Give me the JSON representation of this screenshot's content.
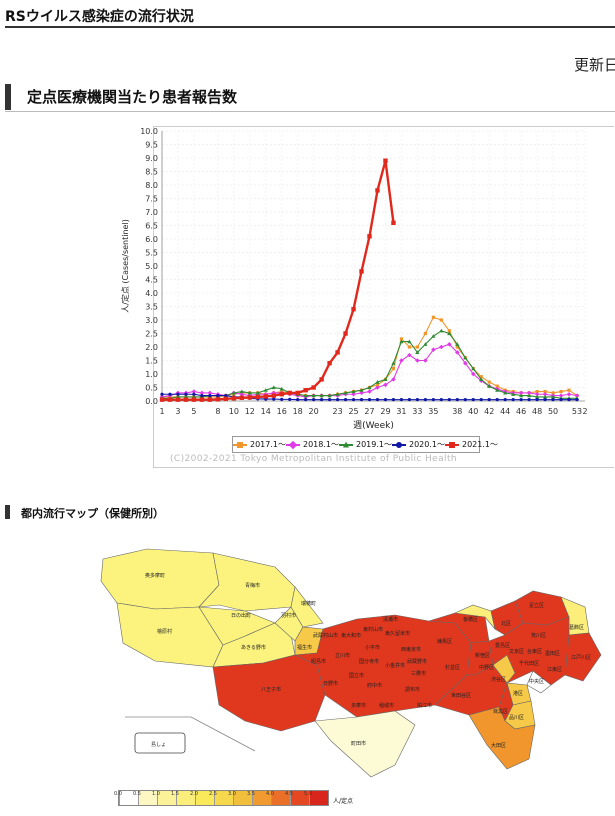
{
  "page_title": "RSウイルス感染症の流行状況",
  "updated_label": "更新日",
  "section_chart_title": "定点医療機関当たり患者報告数",
  "section_map_title": "都内流行マップ（保健所別）",
  "copyright": "(C)2002-2021 Tokyo Metropolitan Institute of Public Health",
  "colors": {
    "c2017": "#f0962c",
    "c2018": "#e13be8",
    "c2019": "#2e8b34",
    "c2020": "#1018a8",
    "c2021": "#e0281c"
  },
  "chart_data": {
    "type": "line",
    "xlabel": "週(Week)",
    "ylabel": "人/定点 (Cases/sentinel)",
    "ylim": [
      0,
      10
    ],
    "yticks": [
      "0.0",
      "0.5",
      "1.0",
      "1.5",
      "2.0",
      "2.5",
      "3.0",
      "3.5",
      "4.0",
      "4.5",
      "5.0",
      "5.5",
      "6.0",
      "6.5",
      "7.0",
      "7.5",
      "8.0",
      "8.5",
      "9.0",
      "9.5",
      "10.0"
    ],
    "xticks": [
      "1",
      "3",
      "5",
      "8",
      "10",
      "12",
      "14",
      "16",
      "18",
      "20",
      "23",
      "25",
      "27",
      "29",
      "31",
      "33",
      "35",
      "38",
      "40",
      "42",
      "44",
      "46",
      "48",
      "50",
      "53",
      "2"
    ],
    "grid": true,
    "legend_position": "bottom",
    "series": [
      {
        "name": "2017.1～",
        "color_key": "c2017",
        "marker": "square",
        "values": [
          0.15,
          0.15,
          0.15,
          0.15,
          0.15,
          0.15,
          0.15,
          0.15,
          0.2,
          0.25,
          0.3,
          0.3,
          0.3,
          0.25,
          0.3,
          0.35,
          0.3,
          0.25,
          0.2,
          0.2,
          0.2,
          0.2,
          0.25,
          0.3,
          0.35,
          0.4,
          0.5,
          0.6,
          0.8,
          1.2,
          2.3,
          2.0,
          2.0,
          2.5,
          3.1,
          3.0,
          2.6,
          2.0,
          1.6,
          1.2,
          0.9,
          0.7,
          0.55,
          0.4,
          0.35,
          0.3,
          0.3,
          0.35,
          0.35,
          0.3,
          0.35,
          0.4,
          0.2
        ]
      },
      {
        "name": "2018.1～",
        "color_key": "c2018",
        "marker": "diamond",
        "values": [
          0.15,
          0.2,
          0.3,
          0.3,
          0.35,
          0.3,
          0.3,
          0.25,
          0.2,
          0.3,
          0.25,
          0.2,
          0.25,
          0.25,
          0.3,
          0.3,
          0.25,
          0.2,
          0.15,
          0.2,
          0.2,
          0.2,
          0.2,
          0.25,
          0.25,
          0.3,
          0.35,
          0.5,
          0.6,
          0.8,
          1.5,
          1.7,
          1.5,
          1.5,
          1.9,
          2.0,
          2.1,
          1.8,
          1.4,
          1.0,
          0.75,
          0.55,
          0.45,
          0.35,
          0.3,
          0.3,
          0.3,
          0.25,
          0.25,
          0.2,
          0.2,
          0.25,
          0.2
        ]
      },
      {
        "name": "2019.1～",
        "color_key": "c2019",
        "marker": "triangle",
        "values": [
          0.1,
          0.1,
          0.15,
          0.15,
          0.15,
          0.15,
          0.2,
          0.2,
          0.2,
          0.3,
          0.35,
          0.3,
          0.3,
          0.4,
          0.5,
          0.45,
          0.3,
          0.25,
          0.2,
          0.2,
          0.2,
          0.2,
          0.25,
          0.3,
          0.35,
          0.4,
          0.5,
          0.7,
          0.8,
          1.4,
          2.2,
          2.2,
          1.8,
          2.1,
          2.4,
          2.6,
          2.5,
          2.1,
          1.6,
          1.2,
          0.8,
          0.55,
          0.4,
          0.3,
          0.25,
          0.2,
          0.2,
          0.15,
          0.15,
          0.15,
          0.1,
          0.1,
          0.1
        ]
      },
      {
        "name": "2020.1～",
        "color_key": "c2020",
        "marker": "circle",
        "values": [
          0.25,
          0.25,
          0.25,
          0.25,
          0.25,
          0.2,
          0.2,
          0.2,
          0.2,
          0.15,
          0.15,
          0.1,
          0.08,
          0.07,
          0.07,
          0.06,
          0.06,
          0.05,
          0.05,
          0.05,
          0.05,
          0.05,
          0.05,
          0.05,
          0.05,
          0.05,
          0.05,
          0.05,
          0.05,
          0.05,
          0.05,
          0.05,
          0.05,
          0.05,
          0.05,
          0.05,
          0.05,
          0.05,
          0.05,
          0.05,
          0.05,
          0.05,
          0.05,
          0.05,
          0.05,
          0.05,
          0.05,
          0.05,
          0.05,
          0.05,
          0.05,
          0.05,
          0.05
        ]
      },
      {
        "name": "2021.1～",
        "color_key": "c2021",
        "marker": "square",
        "values": [
          0.05,
          0.05,
          0.05,
          0.05,
          0.05,
          0.05,
          0.05,
          0.06,
          0.08,
          0.1,
          0.12,
          0.13,
          0.15,
          0.17,
          0.2,
          0.25,
          0.3,
          0.3,
          0.4,
          0.5,
          0.8,
          1.4,
          1.8,
          2.5,
          3.4,
          4.8,
          6.1,
          7.8,
          8.9,
          6.6
        ]
      }
    ]
  },
  "map_data": {
    "legend_ticks": [
      "0.0",
      "0.5",
      "1.0",
      "1.5",
      "2.0",
      "2.5",
      "3.0",
      "3.5",
      "4.0",
      "4.5",
      "5.0"
    ],
    "legend_colors": [
      "#ffffff",
      "#fdf7c4",
      "#fcf29a",
      "#fbee7a",
      "#f9e95b",
      "#f6d84c",
      "#f2bf3d",
      "#f09a30",
      "#ea6f28",
      "#e44722",
      "#d9261c"
    ],
    "unit": "人/定点",
    "islands_label": "島しょ",
    "regions": [
      {
        "name": "奥多摩町",
        "level": "#fbf37e"
      },
      {
        "name": "青梅市",
        "level": "#fbf37e"
      },
      {
        "name": "檜原村",
        "level": "#fbf37e"
      },
      {
        "name": "日の出町",
        "level": "#fbf37e"
      },
      {
        "name": "あきる野市",
        "level": "#fbf37e"
      },
      {
        "name": "羽村市",
        "level": "#fbf37e"
      },
      {
        "name": "瑞穂町",
        "level": "#fbf37e"
      },
      {
        "name": "福生市",
        "level": "#f6c948"
      },
      {
        "name": "八王子市",
        "level": "#e0381f"
      },
      {
        "name": "町田市",
        "level": "#fdfbd6"
      },
      {
        "name": "武蔵村山市",
        "level": "#e0381f"
      },
      {
        "name": "東大和市",
        "level": "#e0381f"
      },
      {
        "name": "東村山市",
        "level": "#e0381f"
      },
      {
        "name": "清瀬市",
        "level": "#e0381f"
      },
      {
        "name": "東久留米市",
        "level": "#e0381f"
      },
      {
        "name": "立川市",
        "level": "#e0381f"
      },
      {
        "name": "昭島市",
        "level": "#e0381f"
      },
      {
        "name": "日野市",
        "level": "#e0381f"
      },
      {
        "name": "多摩市",
        "level": "#e0381f"
      },
      {
        "name": "国立市",
        "level": "#e0381f"
      },
      {
        "name": "国分寺市",
        "level": "#e0381f"
      },
      {
        "name": "小平市",
        "level": "#e0381f"
      },
      {
        "name": "府中市",
        "level": "#e0381f"
      },
      {
        "name": "稲城市",
        "level": "#e0381f"
      },
      {
        "name": "小金井市",
        "level": "#e0381f"
      },
      {
        "name": "西東京市",
        "level": "#e0381f"
      },
      {
        "name": "武蔵野市",
        "level": "#e0381f"
      },
      {
        "name": "三鷹市",
        "level": "#e0381f"
      },
      {
        "name": "調布市",
        "level": "#e0381f"
      },
      {
        "name": "狛江市",
        "level": "#e0381f"
      },
      {
        "name": "練馬区",
        "level": "#e0381f"
      },
      {
        "name": "杉並区",
        "level": "#e0381f"
      },
      {
        "name": "世田谷区",
        "level": "#e0381f"
      },
      {
        "name": "中野区",
        "level": "#e0381f"
      },
      {
        "name": "板橋区",
        "level": "#fbee7a"
      },
      {
        "name": "北区",
        "level": "#e0381f"
      },
      {
        "name": "足立区",
        "level": "#e0381f"
      },
      {
        "name": "葛飾区",
        "level": "#fbee7a"
      },
      {
        "name": "荒川区",
        "level": "#e0381f"
      },
      {
        "name": "豊島区",
        "level": "#e0381f"
      },
      {
        "name": "新宿区",
        "level": "#e0381f"
      },
      {
        "name": "文京区",
        "level": "#e0381f"
      },
      {
        "name": "台東区",
        "level": "#e0381f"
      },
      {
        "name": "墨田区",
        "level": "#e0381f"
      },
      {
        "name": "江戸川区",
        "level": "#e0381f"
      },
      {
        "name": "江東区",
        "level": "#e0381f"
      },
      {
        "name": "千代田区",
        "level": "#e0381f"
      },
      {
        "name": "中央区",
        "level": "#ffffff"
      },
      {
        "name": "港区",
        "level": "#f6c948"
      },
      {
        "name": "渋谷区",
        "level": "#f6c948"
      },
      {
        "name": "中野区2",
        "level": "#fbee7a"
      },
      {
        "name": "目黒区",
        "level": "#e0381f"
      },
      {
        "name": "品川区",
        "level": "#f6c948"
      },
      {
        "name": "大田区",
        "level": "#f0962c"
      }
    ]
  }
}
